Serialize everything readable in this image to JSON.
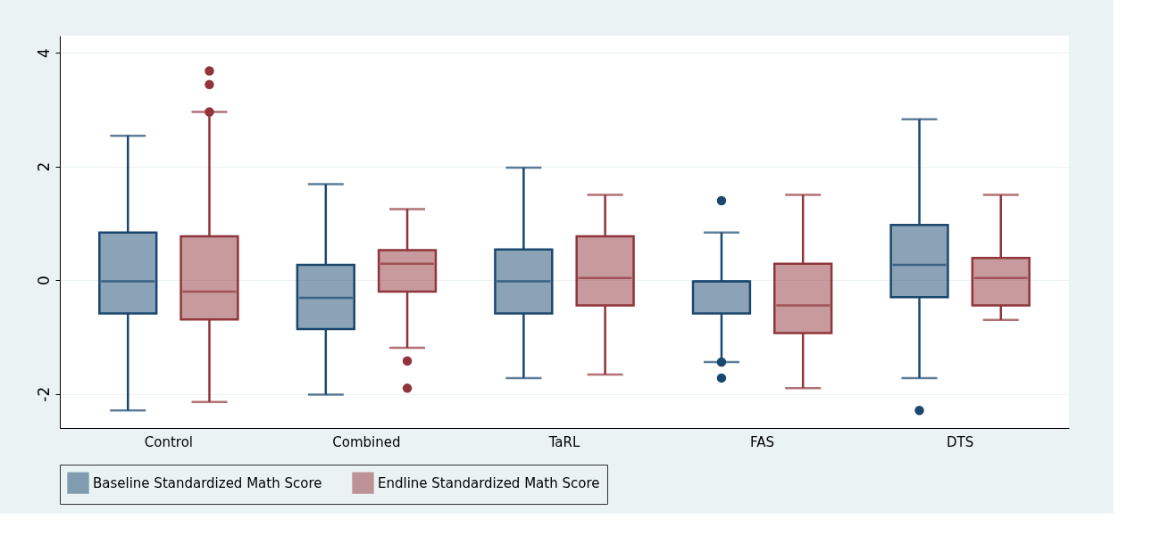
{
  "chart_data": {
    "type": "box",
    "categories": [
      "Control",
      "Combined",
      "TaRL",
      "FAS",
      "DTS"
    ],
    "series": [
      {
        "name": "Baseline Standardized Math Score",
        "color": "#1a476f",
        "boxes": [
          {
            "low": -2.29,
            "q1": -0.585,
            "median": -0.02,
            "q3": 0.84,
            "high": 2.54
          },
          {
            "low": -2.01,
            "q1": -0.86,
            "median": -0.31,
            "q3": 0.27,
            "high": 1.69
          },
          {
            "low": -1.72,
            "q1": -0.585,
            "median": -0.02,
            "q3": 0.54,
            "high": 1.98
          },
          {
            "low": -1.44,
            "q1": -0.585,
            "median": -0.02,
            "q3": -0.02,
            "high": 0.84,
            "outliers": [
              1.4,
              -1.44,
              -1.72
            ]
          },
          {
            "low": -1.72,
            "q1": -0.3,
            "median": 0.27,
            "q3": 0.97,
            "high": 2.83,
            "outliers": [
              -2.29
            ]
          }
        ]
      },
      {
        "name": "Endline Standardized Math Score",
        "color": "#90353b",
        "boxes": [
          {
            "low": -2.14,
            "q1": -0.69,
            "median": -0.2,
            "q3": 0.77,
            "high": 2.96,
            "outliers": [
              3.68,
              3.44,
              2.96
            ]
          },
          {
            "low": -1.19,
            "q1": -0.2,
            "median": 0.29,
            "q3": 0.53,
            "high": 1.25,
            "outliers": [
              -1.42,
              -1.9
            ]
          },
          {
            "low": -1.66,
            "q1": -0.445,
            "median": 0.04,
            "q3": 0.77,
            "high": 1.5
          },
          {
            "low": -1.9,
            "q1": -0.93,
            "median": -0.445,
            "q3": 0.29,
            "high": 1.5
          },
          {
            "low": -0.7,
            "q1": -0.445,
            "median": 0.04,
            "q3": 0.39,
            "high": 1.5
          }
        ]
      }
    ],
    "ylim": [
      -2.6,
      4.3
    ],
    "yticks": [
      -2,
      0,
      2,
      4
    ],
    "grid": "y",
    "legend": "bottom"
  }
}
